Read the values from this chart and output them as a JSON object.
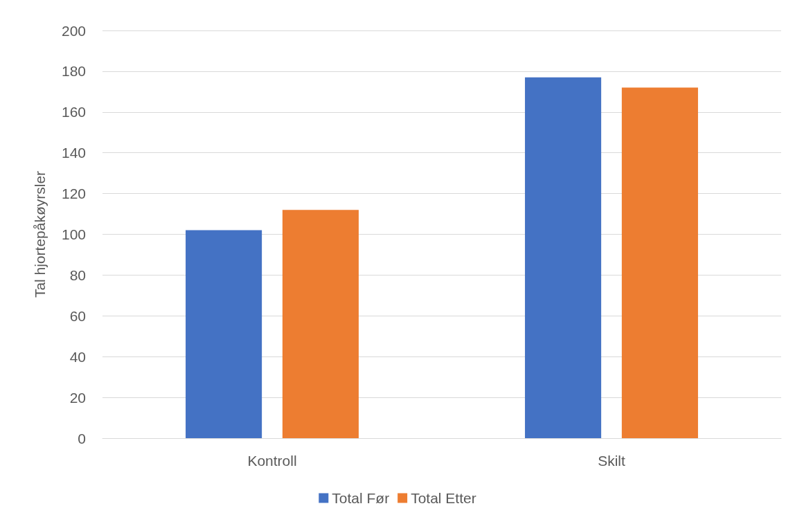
{
  "chart_data": {
    "type": "bar",
    "ylabel": "Tal hjortepåkøyrsler",
    "categories": [
      "Kontroll",
      "Skilt"
    ],
    "series": [
      {
        "name": "Total Før",
        "color": "#4472c4",
        "values": [
          102,
          177
        ]
      },
      {
        "name": "Total Etter",
        "color": "#ed7d31",
        "values": [
          112,
          172
        ]
      }
    ],
    "ylim": [
      0,
      200
    ],
    "yticks": [
      0,
      20,
      40,
      60,
      80,
      100,
      120,
      140,
      160,
      180,
      200
    ],
    "grid": "y",
    "legend": "bottom"
  }
}
